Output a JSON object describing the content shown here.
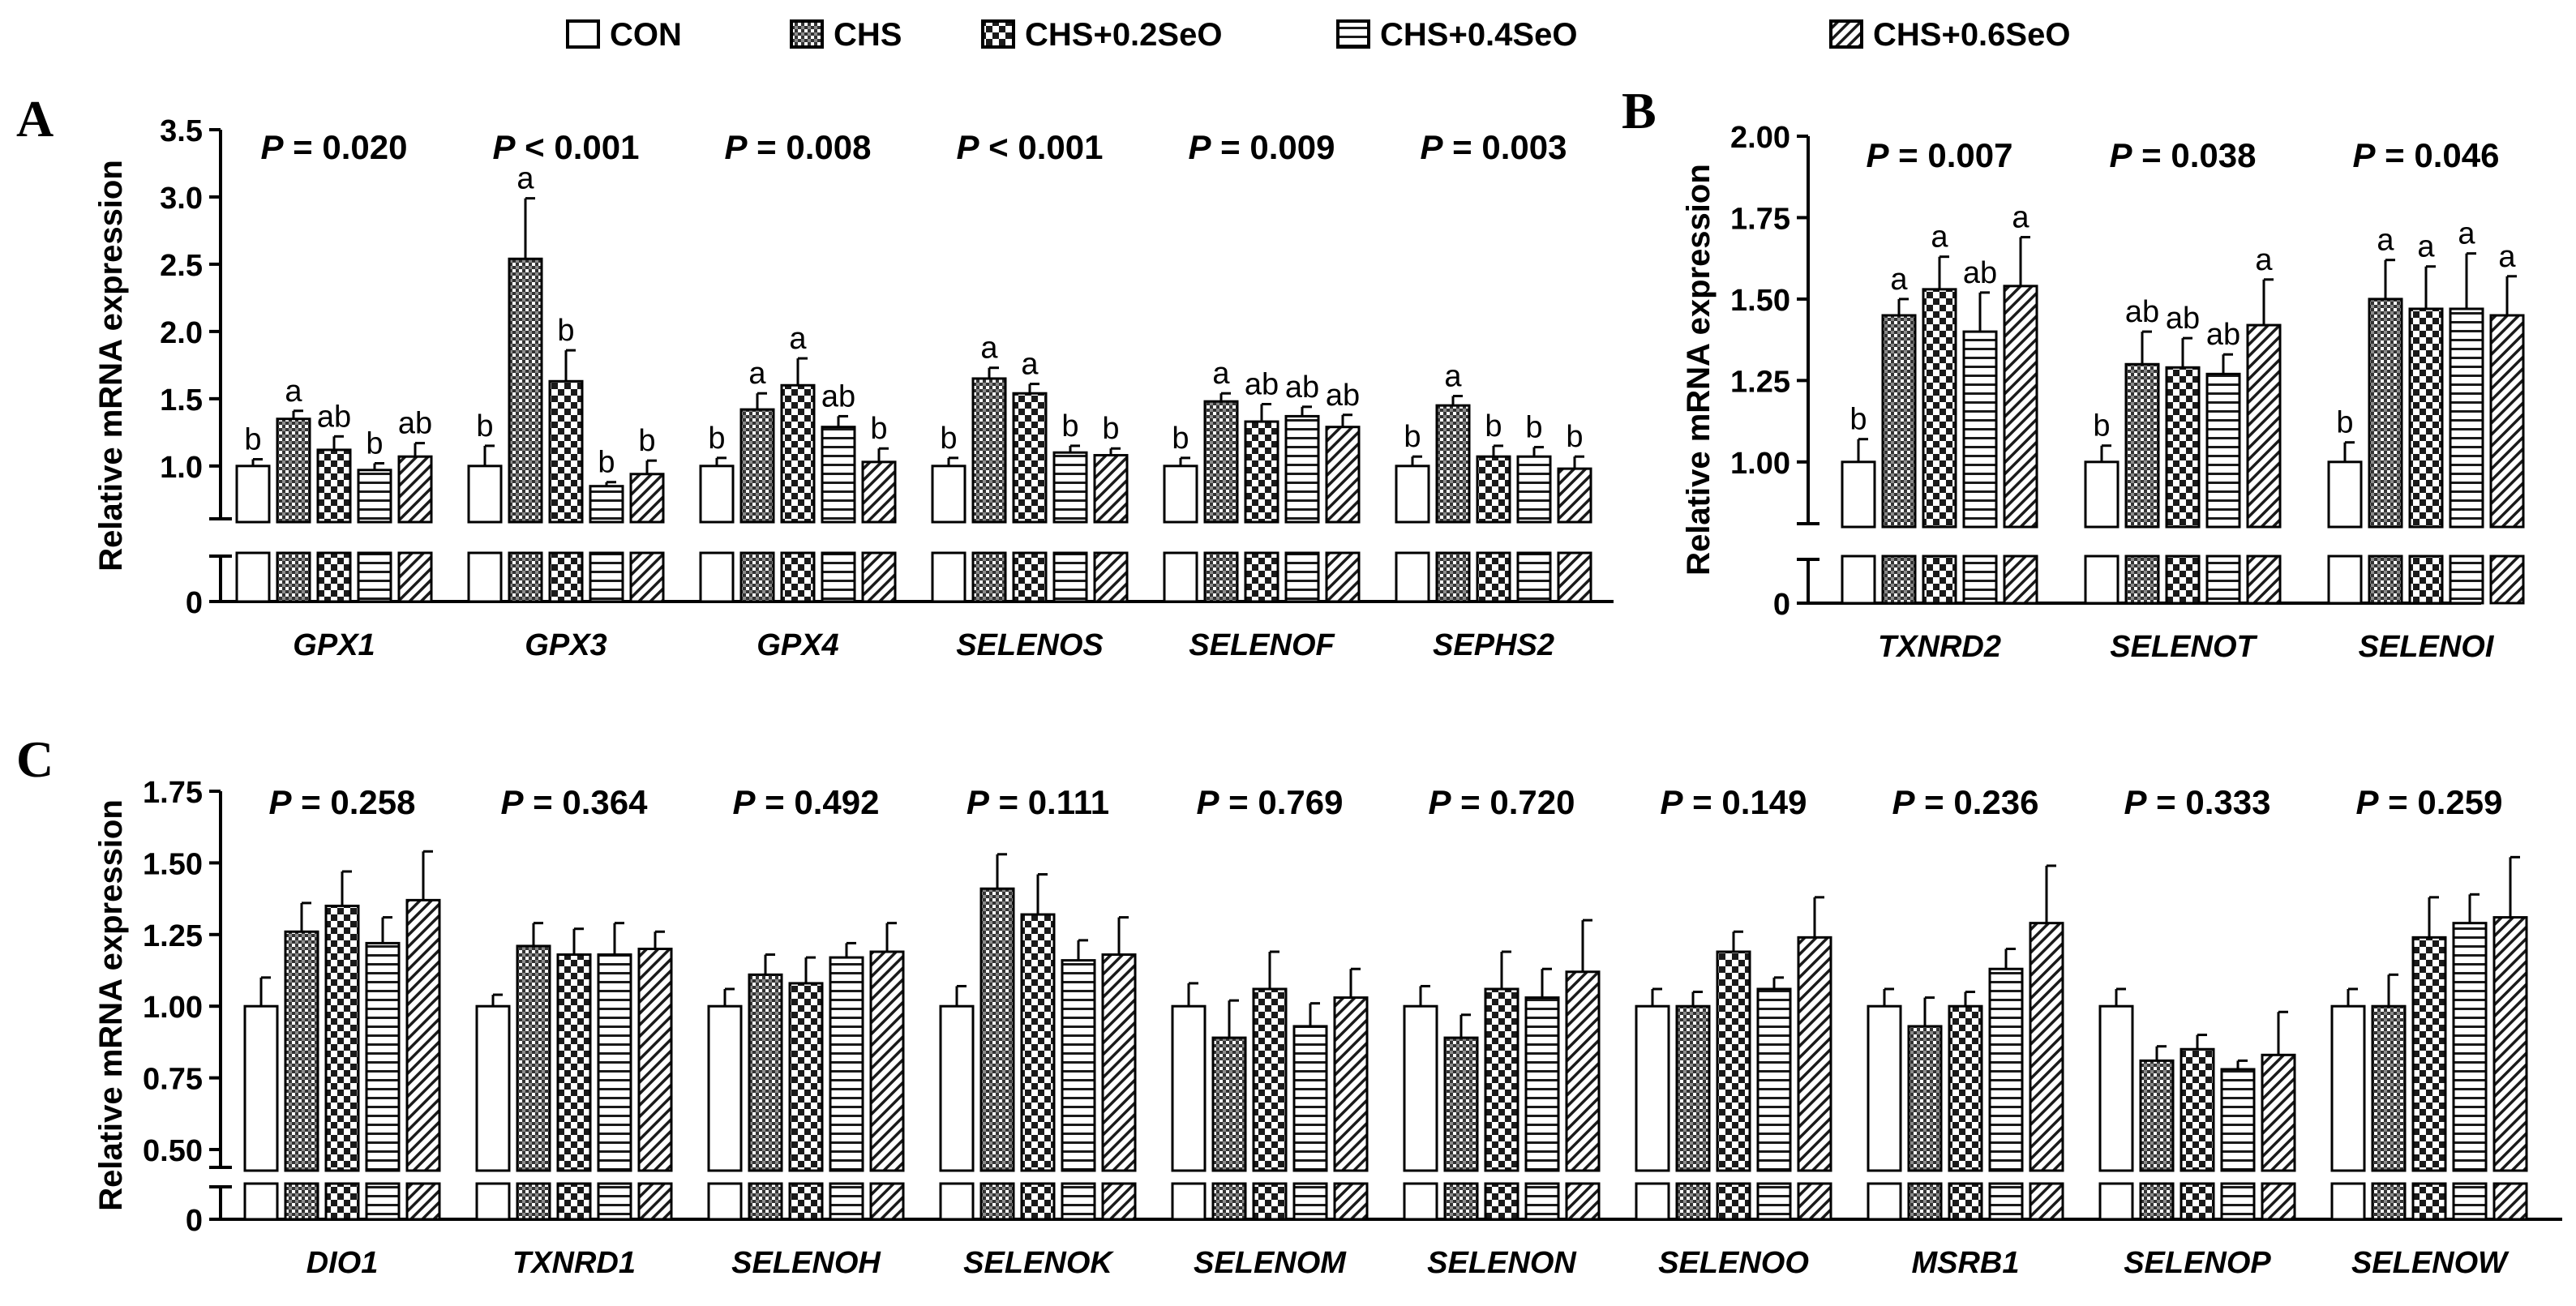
{
  "legend": {
    "items": [
      {
        "label": "CON",
        "pattern": "none"
      },
      {
        "label": "CHS",
        "pattern": "check"
      },
      {
        "label": "CHS+0.2SeO",
        "pattern": "bigcheck"
      },
      {
        "label": "CHS+0.4SeO",
        "pattern": "hlines"
      },
      {
        "label": "CHS+0.6SeO",
        "pattern": "diag"
      }
    ]
  },
  "chart_data": [
    {
      "panel": "A",
      "type": "bar",
      "ylabel": "Relative mRNA expression",
      "yticks": [
        "0",
        "1.0",
        "1.5",
        "2.0",
        "2.5",
        "3.0",
        "3.5"
      ],
      "ylim": [
        0.8,
        3.5
      ],
      "axis_break": true,
      "series_names": [
        "CON",
        "CHS",
        "CHS+0.2SeO",
        "CHS+0.4SeO",
        "CHS+0.6SeO"
      ],
      "groups": [
        {
          "name": "GPX1",
          "p": "P = 0.020",
          "values": [
            1.0,
            1.35,
            1.12,
            0.97,
            1.07
          ],
          "errors": [
            0.05,
            0.06,
            0.1,
            0.05,
            0.1
          ],
          "letters": [
            "b",
            "a",
            "ab",
            "b",
            "ab"
          ]
        },
        {
          "name": "GPX3",
          "p": "P < 0.001",
          "values": [
            1.0,
            2.54,
            1.63,
            0.85,
            0.94
          ],
          "errors": [
            0.15,
            0.45,
            0.23,
            0.03,
            0.1
          ],
          "letters": [
            "b",
            "a",
            "b",
            "b",
            "b"
          ]
        },
        {
          "name": "GPX4",
          "p": "P = 0.008",
          "values": [
            1.0,
            1.42,
            1.6,
            1.29,
            1.03
          ],
          "errors": [
            0.06,
            0.12,
            0.2,
            0.08,
            0.1
          ],
          "letters": [
            "b",
            "a",
            "a",
            "ab",
            "b"
          ]
        },
        {
          "name": "SELENOS",
          "p": "P < 0.001",
          "values": [
            1.0,
            1.65,
            1.54,
            1.1,
            1.08
          ],
          "errors": [
            0.06,
            0.08,
            0.07,
            0.05,
            0.05
          ],
          "letters": [
            "b",
            "a",
            "a",
            "b",
            "b"
          ]
        },
        {
          "name": "SELENOF",
          "p": "P = 0.009",
          "values": [
            1.0,
            1.48,
            1.33,
            1.37,
            1.29
          ],
          "errors": [
            0.06,
            0.06,
            0.13,
            0.07,
            0.09
          ],
          "letters": [
            "b",
            "a",
            "ab",
            "ab",
            "ab"
          ]
        },
        {
          "name": "SEPHS2",
          "p": "P = 0.003",
          "values": [
            1.0,
            1.45,
            1.07,
            1.07,
            0.98
          ],
          "errors": [
            0.07,
            0.07,
            0.08,
            0.07,
            0.09
          ],
          "letters": [
            "b",
            "a",
            "b",
            "b",
            "b"
          ]
        }
      ]
    },
    {
      "panel": "B",
      "type": "bar",
      "ylabel": "Relative mRNA expression",
      "yticks": [
        "0",
        "1.00",
        "1.25",
        "1.50",
        "1.75",
        "2.00"
      ],
      "ylim": [
        0.9,
        2.0
      ],
      "axis_break": true,
      "series_names": [
        "CON",
        "CHS",
        "CHS+0.2SeO",
        "CHS+0.4SeO",
        "CHS+0.6SeO"
      ],
      "groups": [
        {
          "name": "TXNRD2",
          "p": "P = 0.007",
          "values": [
            1.0,
            1.45,
            1.53,
            1.4,
            1.54
          ],
          "errors": [
            0.07,
            0.05,
            0.1,
            0.12,
            0.15
          ],
          "letters": [
            "b",
            "a",
            "a",
            "ab",
            "a"
          ]
        },
        {
          "name": "SELENOT",
          "p": "P = 0.038",
          "values": [
            1.0,
            1.3,
            1.29,
            1.27,
            1.42
          ],
          "errors": [
            0.05,
            0.1,
            0.09,
            0.06,
            0.14
          ],
          "letters": [
            "b",
            "ab",
            "ab",
            "ab",
            "a"
          ]
        },
        {
          "name": "SELENOI",
          "p": "P = 0.046",
          "values": [
            1.0,
            1.5,
            1.47,
            1.47,
            1.45
          ],
          "errors": [
            0.06,
            0.12,
            0.13,
            0.17,
            0.12
          ],
          "letters": [
            "b",
            "a",
            "a",
            "a",
            "a"
          ]
        }
      ]
    },
    {
      "panel": "C",
      "type": "bar",
      "ylabel": "Relative mRNA expression",
      "yticks": [
        "0",
        "0.50",
        "0.75",
        "1.00",
        "1.25",
        "1.50",
        "1.75"
      ],
      "ylim": [
        0.5,
        1.75
      ],
      "axis_break": true,
      "series_names": [
        "CON",
        "CHS",
        "CHS+0.2SeO",
        "CHS+0.4SeO",
        "CHS+0.6SeO"
      ],
      "groups": [
        {
          "name": "DIO1",
          "p": "P = 0.258",
          "values": [
            1.0,
            1.26,
            1.35,
            1.22,
            1.37
          ],
          "errors": [
            0.1,
            0.1,
            0.12,
            0.09,
            0.17
          ],
          "letters": []
        },
        {
          "name": "TXNRD1",
          "p": "P = 0.364",
          "values": [
            1.0,
            1.21,
            1.18,
            1.18,
            1.2
          ],
          "errors": [
            0.04,
            0.08,
            0.09,
            0.11,
            0.06
          ],
          "letters": []
        },
        {
          "name": "SELENOH",
          "p": "P = 0.492",
          "values": [
            1.0,
            1.11,
            1.08,
            1.17,
            1.19
          ],
          "errors": [
            0.06,
            0.07,
            0.09,
            0.05,
            0.1
          ],
          "letters": []
        },
        {
          "name": "SELENOK",
          "p": "P = 0.111",
          "values": [
            1.0,
            1.41,
            1.32,
            1.16,
            1.18
          ],
          "errors": [
            0.07,
            0.12,
            0.14,
            0.07,
            0.13
          ],
          "letters": []
        },
        {
          "name": "SELENOM",
          "p": "P = 0.769",
          "values": [
            1.0,
            0.89,
            1.06,
            0.93,
            1.03
          ],
          "errors": [
            0.08,
            0.13,
            0.13,
            0.08,
            0.1
          ],
          "letters": []
        },
        {
          "name": "SELENON",
          "p": "P = 0.720",
          "values": [
            1.0,
            0.89,
            1.06,
            1.03,
            1.12
          ],
          "errors": [
            0.07,
            0.08,
            0.13,
            0.1,
            0.18
          ],
          "letters": []
        },
        {
          "name": "SELENOO",
          "p": "P = 0.149",
          "values": [
            1.0,
            1.0,
            1.19,
            1.06,
            1.24
          ],
          "errors": [
            0.06,
            0.05,
            0.07,
            0.04,
            0.14
          ],
          "letters": []
        },
        {
          "name": "MSRB1",
          "p": "P = 0.236",
          "values": [
            1.0,
            0.93,
            1.0,
            1.13,
            1.29
          ],
          "errors": [
            0.06,
            0.1,
            0.05,
            0.07,
            0.2
          ],
          "letters": []
        },
        {
          "name": "SELENOP",
          "p": "P = 0.333",
          "values": [
            1.0,
            0.81,
            0.85,
            0.78,
            0.83
          ],
          "errors": [
            0.06,
            0.05,
            0.05,
            0.03,
            0.15
          ],
          "letters": []
        },
        {
          "name": "SELENOW",
          "p": "P = 0.259",
          "values": [
            1.0,
            1.0,
            1.24,
            1.29,
            1.31
          ],
          "errors": [
            0.06,
            0.11,
            0.14,
            0.1,
            0.21
          ],
          "letters": []
        }
      ]
    }
  ]
}
